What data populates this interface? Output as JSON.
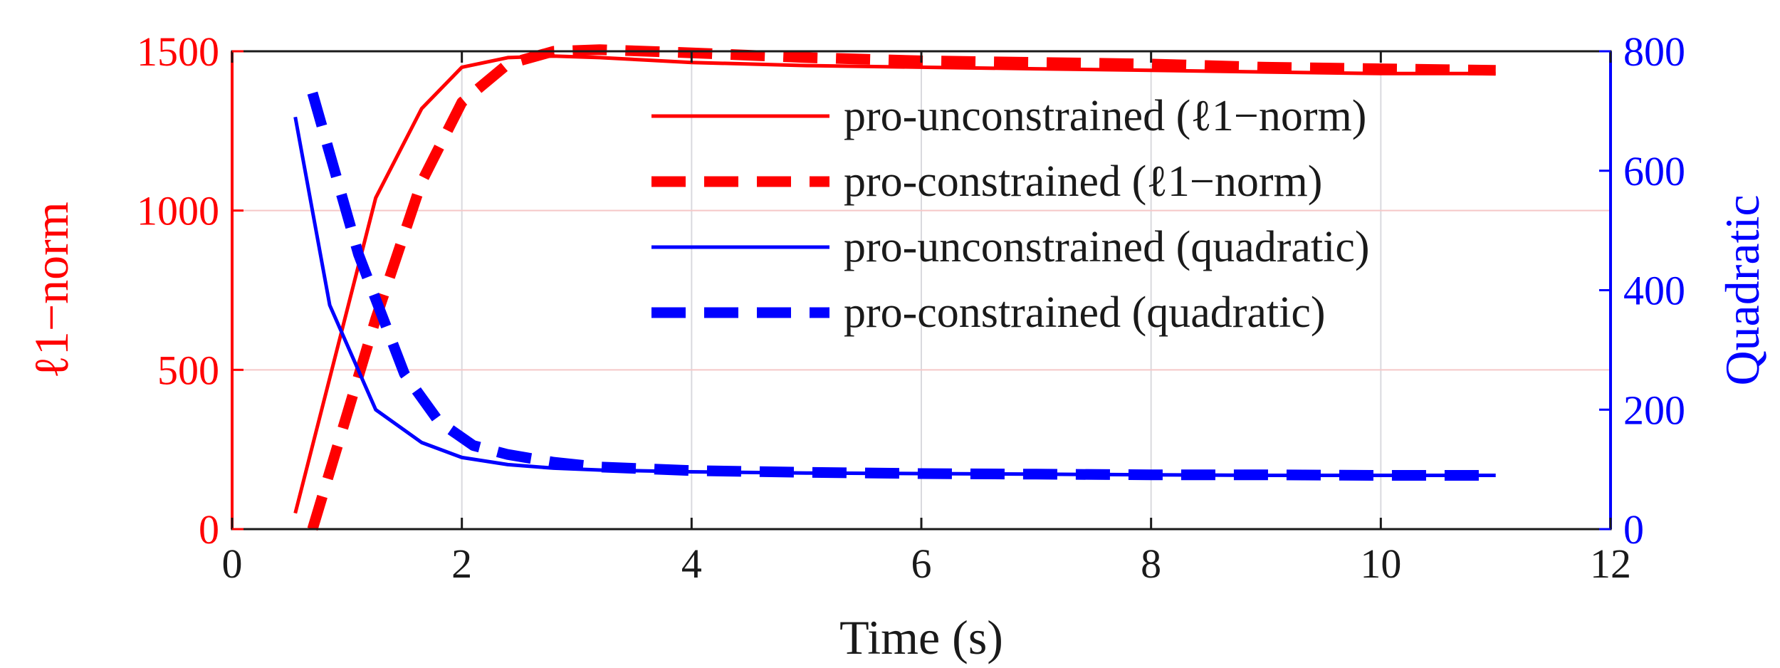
{
  "chart_data": {
    "type": "line",
    "xlabel": "Time (s)",
    "ylabel_left": "ℓ1−norm",
    "ylabel_right": "Quadratic",
    "xlim": [
      0,
      12
    ],
    "ylim_left": [
      0,
      1500
    ],
    "ylim_right": [
      0,
      800
    ],
    "xticks": [
      0,
      2,
      4,
      6,
      8,
      10,
      12
    ],
    "yticks_left": [
      0,
      500,
      1000,
      1500
    ],
    "yticks_right": [
      0,
      200,
      400,
      600,
      800
    ],
    "grid": true,
    "legend_position": "top-right",
    "colors": {
      "left_axis": "#ff0000",
      "right_axis": "#0000ff",
      "axes": "#1a1a1a"
    },
    "series": [
      {
        "name": "pro-unconstrained (ℓ1−norm)",
        "axis": "left",
        "color": "#ff0000",
        "style": "solid",
        "x": [
          0.55,
          1.25,
          1.65,
          2.0,
          2.4,
          2.8,
          3.2,
          4.0,
          5.0,
          6.0,
          7.0,
          8.0,
          9.0,
          10.0,
          11.0
        ],
        "y": [
          50,
          1040,
          1320,
          1450,
          1480,
          1485,
          1480,
          1465,
          1455,
          1450,
          1445,
          1440,
          1435,
          1430,
          1430
        ]
      },
      {
        "name": "pro-constrained (ℓ1−norm)",
        "axis": "left",
        "color": "#ff0000",
        "style": "dashed",
        "x": [
          0.7,
          1.25,
          1.65,
          2.0,
          2.4,
          2.8,
          3.2,
          4.0,
          5.0,
          6.0,
          7.0,
          8.0,
          9.0,
          10.0,
          11.0
        ],
        "y": [
          0,
          660,
          1090,
          1340,
          1460,
          1500,
          1505,
          1495,
          1480,
          1470,
          1465,
          1460,
          1450,
          1445,
          1440
        ]
      },
      {
        "name": "pro-unconstrained (quadratic)",
        "axis": "right",
        "color": "#0000ff",
        "style": "solid",
        "x": [
          0.55,
          0.85,
          1.25,
          1.65,
          2.0,
          2.4,
          2.8,
          3.2,
          4.0,
          5.0,
          6.0,
          7.0,
          8.0,
          9.0,
          10.0,
          11.0
        ],
        "y": [
          690,
          375,
          200,
          145,
          120,
          108,
          102,
          99,
          96,
          94,
          93,
          92,
          91,
          90,
          90,
          90
        ]
      },
      {
        "name": "pro-constrained (quadratic)",
        "axis": "right",
        "color": "#0000ff",
        "style": "dashed",
        "x": [
          0.7,
          1.1,
          1.5,
          1.8,
          2.1,
          2.4,
          2.8,
          3.2,
          4.0,
          5.0,
          6.0,
          7.0,
          8.0,
          9.0,
          10.0,
          11.0
        ],
        "y": [
          730,
          460,
          260,
          180,
          140,
          125,
          112,
          104,
          98,
          95,
          93,
          92,
          91,
          91,
          90,
          90
        ]
      }
    ]
  }
}
